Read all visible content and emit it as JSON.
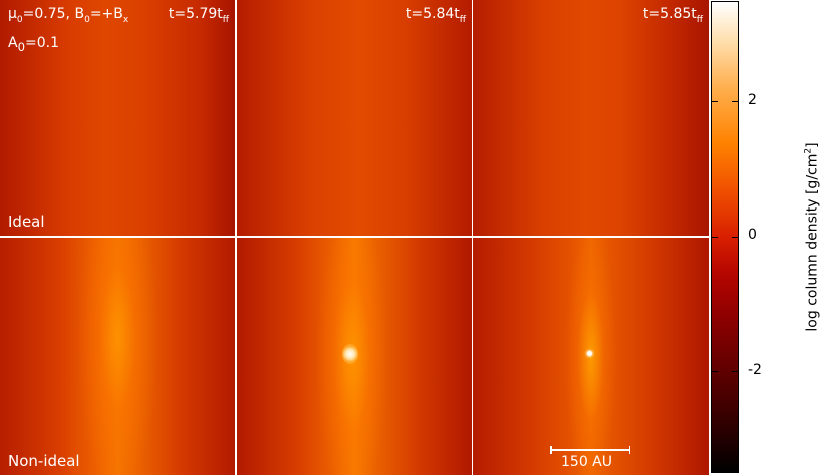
{
  "panels": {
    "top_left_time": "t=5.79t",
    "top_mid_time": "t=5.84t",
    "top_right_time": "t=5.85t",
    "time_subscript": "ff",
    "mu_prefix": "μ",
    "mu_sub": "0",
    "mu_value": "=0.75, B",
    "b_sub": "0",
    "b_value": "=+B",
    "b_comp": "x",
    "a_prefix": "A",
    "a_sub": "0",
    "a_value": "=0.1",
    "row_top_label": "Ideal",
    "row_bottom_label": "Non-ideal",
    "scale_label": "150 AU"
  },
  "colorbar": {
    "title": "log column density [g/cm",
    "title_sup": "2",
    "title_end": "]",
    "ticks": [
      "2",
      "0",
      "-2"
    ]
  },
  "colors": {
    "dim": "#b11a00",
    "mid": "#df4700",
    "bright": "#f57400",
    "peak": "#ffffff"
  }
}
